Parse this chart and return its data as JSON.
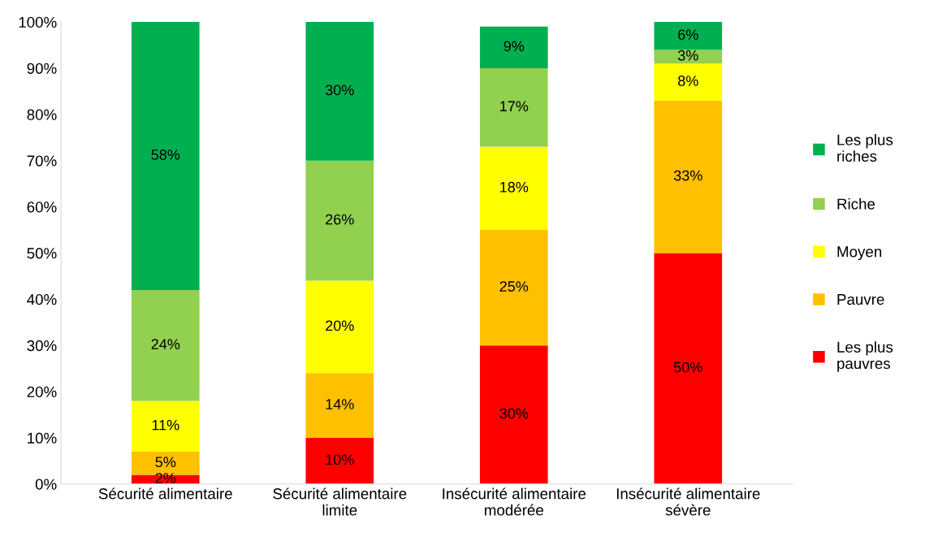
{
  "chart_data": {
    "type": "bar",
    "stacked": true,
    "categories": [
      "Sécurité alimentaire",
      "Sécurité alimentaire limite",
      "Insécurité alimentaire modérée",
      "Insécurité alimentaire sévère"
    ],
    "series": [
      {
        "name": "Les plus pauvres",
        "color": "#ff0000",
        "values": [
          2,
          10,
          30,
          50
        ],
        "value_labels": [
          "2%",
          "10%",
          "30%",
          "50%"
        ]
      },
      {
        "name": "Pauvre",
        "color": "#ffc000",
        "values": [
          5,
          14,
          25,
          33
        ],
        "value_labels": [
          "5%",
          "14%",
          "25%",
          "33%"
        ]
      },
      {
        "name": "Moyen",
        "color": "#ffff00",
        "values": [
          11,
          20,
          18,
          8
        ],
        "value_labels": [
          "11%",
          "20%",
          "18%",
          "8%"
        ]
      },
      {
        "name": "Riche",
        "color": "#92d050",
        "values": [
          24,
          26,
          17,
          3
        ],
        "value_labels": [
          "24%",
          "26%",
          "17%",
          "3%"
        ]
      },
      {
        "name": "Les plus riches",
        "color": "#00b050",
        "values": [
          58,
          30,
          9,
          6
        ],
        "value_labels": [
          "58%",
          "30%",
          "9%",
          "6%"
        ]
      }
    ],
    "ylim": [
      0,
      100
    ],
    "yticks": [
      {
        "value": 0,
        "label": "0%"
      },
      {
        "value": 10,
        "label": "10%"
      },
      {
        "value": 20,
        "label": "20%"
      },
      {
        "value": 30,
        "label": "30%"
      },
      {
        "value": 40,
        "label": "40%"
      },
      {
        "value": 50,
        "label": "50%"
      },
      {
        "value": 60,
        "label": "60%"
      },
      {
        "value": 70,
        "label": "70%"
      },
      {
        "value": 80,
        "label": "80%"
      },
      {
        "value": 90,
        "label": "90%"
      },
      {
        "value": 100,
        "label": "100%"
      }
    ],
    "grid": false,
    "legend": "right"
  }
}
